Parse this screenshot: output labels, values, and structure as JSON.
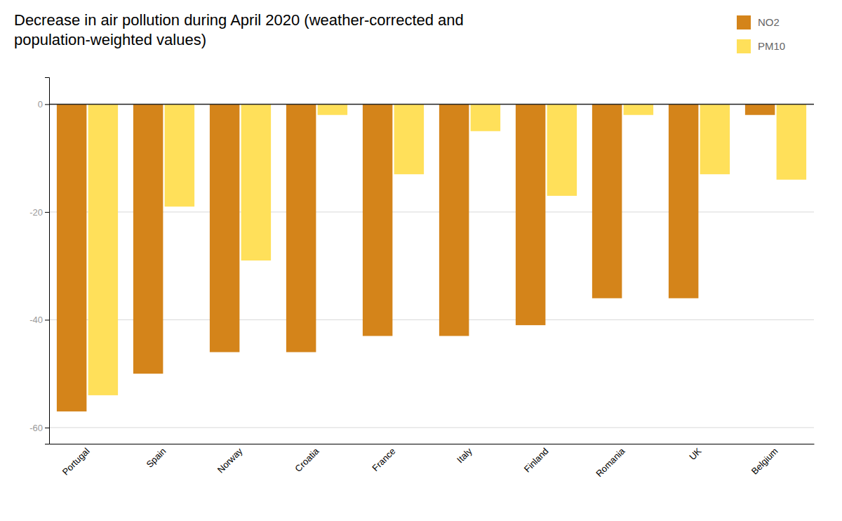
{
  "chart_data": {
    "type": "bar",
    "title": "Decrease in air pollution during April 2020 (weather-corrected and\npopulation-weighted values)",
    "categories": [
      "Portugal",
      "Spain",
      "Norway",
      "Croatia",
      "France",
      "Italy",
      "Finland",
      "Romania",
      "UK",
      "Belgium"
    ],
    "series": [
      {
        "name": "NO2",
        "color": "#D4841A",
        "values": [
          -57,
          -50,
          -46,
          -46,
          -43,
          -43,
          -41,
          -36,
          -36,
          -2
        ]
      },
      {
        "name": "PM10",
        "color": "#FFE05A",
        "values": [
          -54,
          -19,
          -29,
          -2,
          -13,
          -5,
          -17,
          -2,
          -13,
          -14
        ]
      }
    ],
    "ylim": [
      -63,
      5
    ],
    "yticks": [
      0,
      -20,
      -40,
      -60
    ],
    "grid": true,
    "legend": "upper right"
  }
}
